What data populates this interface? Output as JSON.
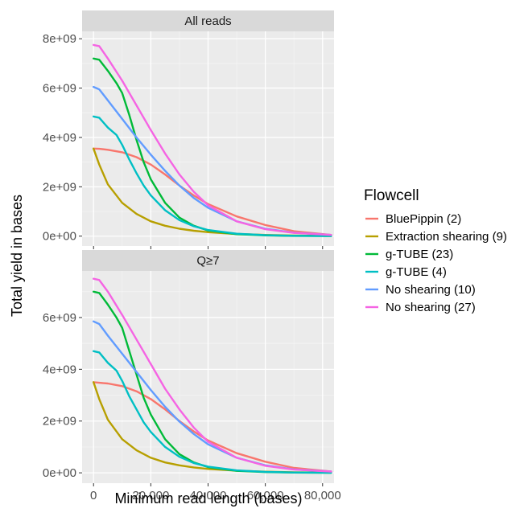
{
  "chart_data": {
    "type": "line",
    "xlabel": "Minimum read length (bases)",
    "ylabel": "Total yield in bases",
    "xlim": [
      -4000,
      84000
    ],
    "x_ticks": [
      0,
      20000,
      40000,
      60000,
      80000
    ],
    "x_tick_labels": [
      "0",
      "20,000",
      "40,000",
      "60,000",
      "80,000"
    ],
    "grid": true,
    "legend": {
      "title": "Flowcell",
      "placement": "right",
      "entries": [
        "BluePippin (2)",
        "Extraction shearing (9)",
        "g-TUBE (23)",
        "g-TUBE (4)",
        "No shearing (10)",
        "No shearing (27)"
      ]
    },
    "colors": {
      "BluePippin (2)": "#F8766D",
      "Extraction shearing (9)": "#B79F00",
      "g-TUBE (23)": "#00BA38",
      "g-TUBE (4)": "#00BFC4",
      "No shearing (10)": "#619CFF",
      "No shearing (27)": "#F564E3"
    },
    "panels": [
      {
        "strip": "All reads",
        "ylim": [
          -400000000,
          8300000000
        ],
        "y_ticks": [
          0,
          2000000000,
          4000000000,
          6000000000,
          8000000000
        ],
        "y_tick_labels": [
          "0e+00",
          "2e+09",
          "4e+09",
          "6e+09",
          "8e+09"
        ],
        "series": [
          {
            "name": "BluePippin (2)",
            "x": [
              0,
              2000,
              5000,
              10000,
              15000,
              20000,
              25000,
              30000,
              35000,
              40000,
              50000,
              60000,
              70000,
              83000
            ],
            "values": [
              3550000000,
              3540000000,
              3500000000,
              3400000000,
              3200000000,
              2900000000,
              2500000000,
              2050000000,
              1650000000,
              1300000000,
              800000000,
              450000000,
              200000000,
              50000000
            ]
          },
          {
            "name": "Extraction shearing (9)",
            "x": [
              0,
              2000,
              5000,
              10000,
              15000,
              20000,
              25000,
              30000,
              35000,
              40000,
              50000,
              60000,
              70000,
              83000
            ],
            "values": [
              3550000000,
              2900000000,
              2100000000,
              1350000000,
              900000000,
              600000000,
              420000000,
              300000000,
              220000000,
              160000000,
              90000000,
              50000000,
              25000000,
              10000000
            ]
          },
          {
            "name": "g-TUBE (23)",
            "x": [
              0,
              2000,
              5000,
              8000,
              10000,
              12500,
              15000,
              17500,
              20000,
              25000,
              30000,
              35000,
              40000,
              50000,
              60000,
              70000,
              83000
            ],
            "values": [
              7200000000,
              7150000000,
              6700000000,
              6200000000,
              5800000000,
              4900000000,
              3900000000,
              3000000000,
              2300000000,
              1350000000,
              750000000,
              420000000,
              230000000,
              80000000,
              30000000,
              10000000,
              5000000
            ]
          },
          {
            "name": "g-TUBE (4)",
            "x": [
              0,
              2000,
              5000,
              8000,
              10000,
              12500,
              15000,
              17500,
              20000,
              25000,
              30000,
              35000,
              40000,
              50000,
              60000,
              70000,
              83000
            ],
            "values": [
              4850000000,
              4800000000,
              4400000000,
              4100000000,
              3700000000,
              3100000000,
              2550000000,
              2050000000,
              1650000000,
              1050000000,
              650000000,
              400000000,
              250000000,
              100000000,
              40000000,
              15000000,
              5000000
            ]
          },
          {
            "name": "No shearing (10)",
            "x": [
              0,
              2000,
              5000,
              10000,
              15000,
              20000,
              25000,
              30000,
              35000,
              40000,
              50000,
              60000,
              70000,
              83000
            ],
            "values": [
              6050000000,
              5950000000,
              5500000000,
              4750000000,
              4000000000,
              3300000000,
              2650000000,
              2050000000,
              1550000000,
              1150000000,
              600000000,
              300000000,
              140000000,
              50000000
            ]
          },
          {
            "name": "No shearing (27)",
            "x": [
              0,
              2000,
              5000,
              10000,
              15000,
              20000,
              25000,
              30000,
              35000,
              40000,
              50000,
              60000,
              70000,
              83000
            ],
            "values": [
              7750000000,
              7700000000,
              7200000000,
              6300000000,
              5300000000,
              4300000000,
              3350000000,
              2500000000,
              1800000000,
              1250000000,
              600000000,
              280000000,
              130000000,
              50000000
            ]
          }
        ]
      },
      {
        "strip": "Q≥7",
        "ylim": [
          -400000000,
          7800000000
        ],
        "y_ticks": [
          0,
          2000000000,
          4000000000,
          6000000000
        ],
        "y_tick_labels": [
          "0e+00",
          "2e+09",
          "4e+09",
          "6e+09"
        ],
        "series": [
          {
            "name": "BluePippin (2)",
            "x": [
              0,
              2000,
              5000,
              10000,
              15000,
              20000,
              25000,
              30000,
              35000,
              40000,
              50000,
              60000,
              70000,
              83000
            ],
            "values": [
              3500000000,
              3480000000,
              3450000000,
              3350000000,
              3150000000,
              2850000000,
              2450000000,
              2000000000,
              1600000000,
              1250000000,
              760000000,
              430000000,
              190000000,
              50000000
            ]
          },
          {
            "name": "Extraction shearing (9)",
            "x": [
              0,
              2000,
              5000,
              10000,
              15000,
              20000,
              25000,
              30000,
              35000,
              40000,
              50000,
              60000,
              70000,
              83000
            ],
            "values": [
              3500000000,
              2850000000,
              2050000000,
              1300000000,
              870000000,
              580000000,
              400000000,
              290000000,
              210000000,
              150000000,
              85000000,
              45000000,
              22000000,
              10000000
            ]
          },
          {
            "name": "g-TUBE (23)",
            "x": [
              0,
              2000,
              5000,
              8000,
              10000,
              12500,
              15000,
              17500,
              20000,
              25000,
              30000,
              35000,
              40000,
              50000,
              60000,
              70000,
              83000
            ],
            "values": [
              7000000000,
              6950000000,
              6500000000,
              6000000000,
              5600000000,
              4700000000,
              3800000000,
              2900000000,
              2250000000,
              1300000000,
              720000000,
              400000000,
              220000000,
              75000000,
              28000000,
              10000000,
              5000000
            ]
          },
          {
            "name": "g-TUBE (4)",
            "x": [
              0,
              2000,
              5000,
              8000,
              10000,
              12500,
              15000,
              17500,
              20000,
              25000,
              30000,
              35000,
              40000,
              50000,
              60000,
              70000,
              83000
            ],
            "values": [
              4700000000,
              4650000000,
              4250000000,
              3950000000,
              3550000000,
              2950000000,
              2450000000,
              1950000000,
              1580000000,
              1000000000,
              620000000,
              380000000,
              240000000,
              95000000,
              38000000,
              14000000,
              5000000
            ]
          },
          {
            "name": "No shearing (10)",
            "x": [
              0,
              2000,
              5000,
              10000,
              15000,
              20000,
              25000,
              30000,
              35000,
              40000,
              50000,
              60000,
              70000,
              83000
            ],
            "values": [
              5850000000,
              5750000000,
              5300000000,
              4600000000,
              3900000000,
              3200000000,
              2550000000,
              1980000000,
              1500000000,
              1100000000,
              580000000,
              290000000,
              135000000,
              50000000
            ]
          },
          {
            "name": "No shearing (27)",
            "x": [
              0,
              2000,
              5000,
              10000,
              15000,
              20000,
              25000,
              30000,
              35000,
              40000,
              50000,
              60000,
              70000,
              83000
            ],
            "values": [
              7500000000,
              7450000000,
              7000000000,
              6100000000,
              5150000000,
              4200000000,
              3250000000,
              2450000000,
              1750000000,
              1200000000,
              580000000,
              270000000,
              125000000,
              50000000
            ]
          }
        ]
      }
    ]
  }
}
